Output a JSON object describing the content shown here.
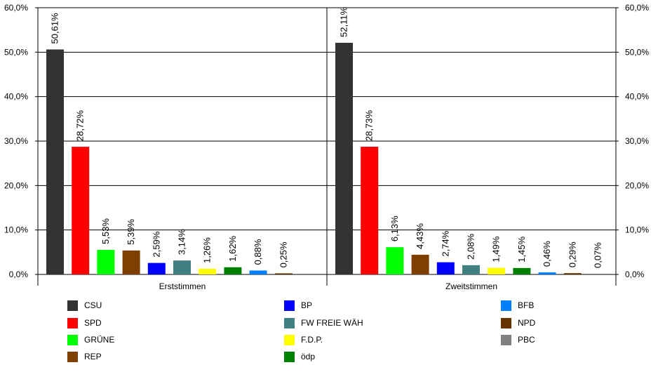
{
  "chart_data": {
    "type": "bar",
    "categories": [
      "Erststimmen",
      "Zweitstimmen"
    ],
    "ylim": [
      0,
      60
    ],
    "yticks": [
      "0,0%",
      "10,0%",
      "20,0%",
      "30,0%",
      "40,0%",
      "50,0%",
      "60,0%"
    ],
    "grid": true,
    "legend_position": "bottom",
    "groups": [
      {
        "name": "Erststimmen",
        "bars": [
          {
            "party": "CSU",
            "value": 50.61,
            "label": "50,61%"
          },
          {
            "party": "SPD",
            "value": 28.72,
            "label": "28,72%"
          },
          {
            "party": "GRÜNE",
            "value": 5.53,
            "label": "5,53%"
          },
          {
            "party": "REP",
            "value": 5.39,
            "label": "5,39%"
          },
          {
            "party": "BP",
            "value": 2.59,
            "label": "2,59%"
          },
          {
            "party": "FW FREIE WÄH",
            "value": 3.14,
            "label": "3,14%"
          },
          {
            "party": "F.D.P.",
            "value": 1.26,
            "label": "1,26%"
          },
          {
            "party": "ödp",
            "value": 1.62,
            "label": "1,62%"
          },
          {
            "party": "BFB",
            "value": 0.88,
            "label": "0,88%"
          },
          {
            "party": "NPD",
            "value": 0.25,
            "label": "0,25%"
          }
        ]
      },
      {
        "name": "Zweitstimmen",
        "bars": [
          {
            "party": "CSU",
            "value": 52.11,
            "label": "52,11%"
          },
          {
            "party": "SPD",
            "value": 28.73,
            "label": "28,73%"
          },
          {
            "party": "GRÜNE",
            "value": 6.13,
            "label": "6,13%"
          },
          {
            "party": "REP",
            "value": 4.43,
            "label": "4,43%"
          },
          {
            "party": "BP",
            "value": 2.74,
            "label": "2,74%"
          },
          {
            "party": "FW FREIE WÄH",
            "value": 2.08,
            "label": "2,08%"
          },
          {
            "party": "F.D.P.",
            "value": 1.49,
            "label": "1,49%"
          },
          {
            "party": "ödp",
            "value": 1.45,
            "label": "1,45%"
          },
          {
            "party": "BFB",
            "value": 0.46,
            "label": "0,46%"
          },
          {
            "party": "NPD",
            "value": 0.29,
            "label": "0,29%"
          },
          {
            "party": "PBC",
            "value": 0.07,
            "label": "0,07%"
          }
        ]
      }
    ],
    "parties": [
      {
        "name": "CSU",
        "color": "#333333"
      },
      {
        "name": "SPD",
        "color": "#ff0000"
      },
      {
        "name": "GRÜNE",
        "color": "#00ff00"
      },
      {
        "name": "REP",
        "color": "#7f3f00"
      },
      {
        "name": "BP",
        "color": "#0000ff"
      },
      {
        "name": "FW FREIE WÄH",
        "color": "#408080"
      },
      {
        "name": "F.D.P.",
        "color": "#ffff00"
      },
      {
        "name": "ödp",
        "color": "#008000"
      },
      {
        "name": "BFB",
        "color": "#0080ff"
      },
      {
        "name": "NPD",
        "color": "#663300"
      },
      {
        "name": "PBC",
        "color": "#808080"
      }
    ]
  }
}
